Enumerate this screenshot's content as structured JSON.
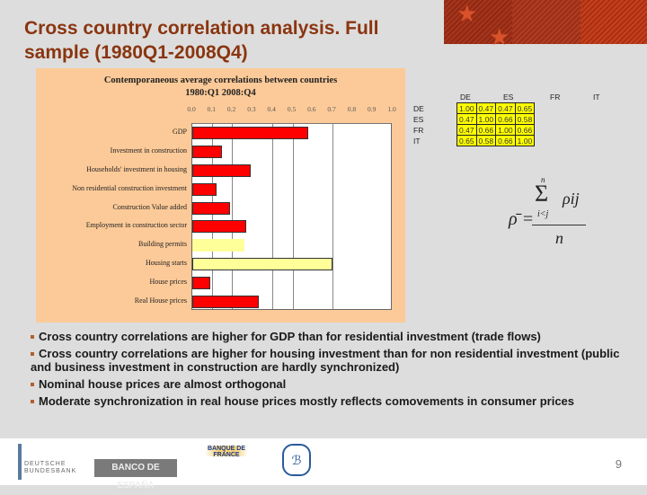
{
  "slide": {
    "title": "Cross country correlation analysis. Full sample (1980Q1-2008Q4)",
    "page_number": "9",
    "bullets": [
      "Cross country correlations are higher for GDP than for residential investment (trade flows)",
      "Cross country correlations are higher for housing investment than for non residential investment (public and business investment in construction are hardly synchronized)",
      "Nominal house prices are almost orthogonal",
      "Moderate synchronization in real house prices mostly reflects comovements in consumer prices"
    ],
    "logos": [
      "DEUTSCHE BUNDESBANK",
      "BANCO DE ESPAÑA",
      "BANQUE DE FRANCE",
      "BANCA D'ITALIA"
    ],
    "colors": {
      "title": "#8a3510",
      "panel": "#fcca98",
      "bar_red": "#ff0000",
      "bar_yellow": "#ffff99",
      "table_cell": "#ffff00"
    }
  },
  "chart_data": {
    "type": "bar",
    "orientation": "horizontal",
    "title": "Contemporaneous average correlations between countries",
    "subtitle": "1980:Q1 2008:Q4",
    "xlabel": "",
    "ylabel": "",
    "xlim": [
      0.0,
      1.0
    ],
    "tick_labels": [
      "0.0",
      "0.1",
      "0.2",
      "0.3",
      "0.4",
      "0.5",
      "0.6",
      "0.7",
      "0.8",
      "0.9",
      "1.0"
    ],
    "grid": true,
    "legend": null,
    "categories": [
      "GDP",
      "Investment in construction",
      "Households' investment in housing",
      "Non residential construction investment",
      "Construction Value added",
      "Employment in construction sector",
      "Building permits",
      "Housing starts",
      "House prices",
      "Real House prices"
    ],
    "values": [
      0.58,
      0.15,
      0.29,
      0.12,
      0.19,
      0.27,
      0.26,
      0.7,
      0.09,
      0.33
    ],
    "bar_colors": [
      "red",
      "red",
      "red",
      "red",
      "red",
      "red",
      "yellow",
      "yellow",
      "red",
      "red"
    ]
  },
  "correlation_table": {
    "columns": [
      "DE",
      "ES",
      "FR",
      "IT"
    ],
    "rows": [
      {
        "label": "DE",
        "values": [
          "1.00",
          "0.47",
          "0.47",
          "0.65"
        ]
      },
      {
        "label": "ES",
        "values": [
          "0.47",
          "1.00",
          "0.66",
          "0.58"
        ]
      },
      {
        "label": "FR",
        "values": [
          "0.47",
          "0.66",
          "1.00",
          "0.66"
        ]
      },
      {
        "label": "IT",
        "values": [
          "0.65",
          "0.58",
          "0.66",
          "1.00"
        ]
      }
    ]
  },
  "formula": {
    "lhs": "ρ̄ =",
    "sum": "Σ",
    "upper": "n",
    "lower": "i<j",
    "term": "ρij",
    "denominator": "n"
  }
}
